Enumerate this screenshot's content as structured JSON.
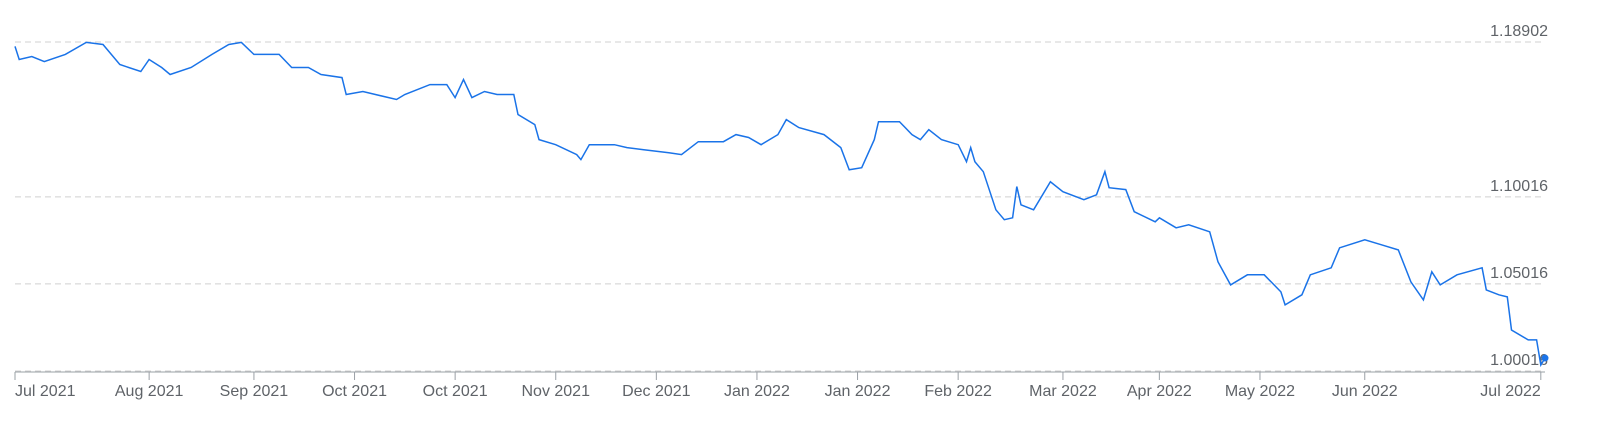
{
  "chart_data": {
    "type": "line",
    "x": [
      0,
      1,
      4,
      7,
      12,
      17,
      21,
      25,
      30,
      32,
      35,
      37,
      42,
      47,
      51,
      54,
      57,
      63,
      66,
      70,
      73,
      78,
      79,
      83,
      91,
      93,
      99,
      103,
      105,
      107,
      109,
      112,
      115,
      119,
      120,
      124,
      125,
      129,
      134,
      135,
      137,
      143,
      146,
      150,
      156,
      159,
      163,
      169,
      172,
      175,
      178,
      182,
      184,
      187,
      193,
      197,
      199,
      202,
      205,
      206,
      211,
      214,
      216,
      218,
      221,
      225,
      227,
      228,
      229,
      231,
      234,
      236,
      238,
      239,
      240,
      243,
      247,
      250,
      255,
      258,
      260,
      261,
      265,
      267,
      272,
      273,
      277,
      280,
      285,
      287,
      290,
      294,
      298,
      302,
      303,
      307,
      309,
      314,
      316,
      322,
      326,
      330,
      333,
      336,
      338,
      340,
      344,
      350,
      351,
      354,
      356,
      357,
      361,
      363,
      364,
      365
    ],
    "series": [
      {
        "color": "#1a73e8",
        "values": [
          1.1865,
          1.179,
          1.1807,
          1.1778,
          1.1819,
          1.1888,
          1.1876,
          1.1761,
          1.1721,
          1.179,
          1.1744,
          1.1704,
          1.1744,
          1.1819,
          1.1876,
          1.1888,
          1.1819,
          1.1819,
          1.1744,
          1.1744,
          1.1704,
          1.1686,
          1.1589,
          1.1606,
          1.156,
          1.1589,
          1.1646,
          1.1646,
          1.1571,
          1.1675,
          1.1571,
          1.1606,
          1.1589,
          1.1589,
          1.1474,
          1.1416,
          1.133,
          1.1301,
          1.1244,
          1.1215,
          1.1301,
          1.1301,
          1.1284,
          1.1272,
          1.1255,
          1.1244,
          1.1318,
          1.1318,
          1.1359,
          1.1342,
          1.1301,
          1.1359,
          1.1445,
          1.1399,
          1.1359,
          1.1284,
          1.1157,
          1.1169,
          1.133,
          1.1433,
          1.1433,
          1.1359,
          1.133,
          1.1387,
          1.133,
          1.1301,
          1.1203,
          1.1284,
          1.1203,
          1.1146,
          1.0927,
          1.087,
          1.0881,
          1.106,
          1.0956,
          1.0927,
          1.1088,
          1.1031,
          1.0985,
          1.1013,
          1.1146,
          1.1054,
          1.1043,
          1.0916,
          1.0858,
          1.0881,
          1.0824,
          1.0841,
          1.0801,
          1.0628,
          1.0496,
          1.0554,
          1.0554,
          1.0456,
          1.0381,
          1.0439,
          1.0554,
          1.0594,
          1.0709,
          1.0755,
          1.0726,
          1.0697,
          1.0513,
          1.041,
          1.0571,
          1.0496,
          1.0554,
          1.0594,
          1.0467,
          1.0439,
          1.0427,
          1.0237,
          1.018,
          1.018,
          1.0036,
          1.0076
        ]
      }
    ],
    "xlim": [
      0,
      365
    ],
    "xticks": [
      {
        "value": 0,
        "label": "Jul 2021"
      },
      {
        "value": 32,
        "label": "Aug 2021"
      },
      {
        "value": 57,
        "label": "Sep 2021"
      },
      {
        "value": 81,
        "label": "Oct 2021"
      },
      {
        "value": 105,
        "label": "Oct 2021"
      },
      {
        "value": 129,
        "label": "Nov 2021"
      },
      {
        "value": 153,
        "label": "Dec 2021"
      },
      {
        "value": 177,
        "label": "Jan 2022"
      },
      {
        "value": 201,
        "label": "Jan 2022"
      },
      {
        "value": 225,
        "label": "Feb 2022"
      },
      {
        "value": 250,
        "label": "Mar 2022"
      },
      {
        "value": 273,
        "label": "Apr 2022"
      },
      {
        "value": 297,
        "label": "May 2022"
      },
      {
        "value": 322,
        "label": "Jun 2022"
      },
      {
        "value": 364,
        "label": "Jul 2022"
      }
    ],
    "ylim": [
      1.0,
      1.2
    ],
    "yticks": [
      1.00016,
      1.05016,
      1.10016,
      1.18902
    ],
    "grid": true
  }
}
